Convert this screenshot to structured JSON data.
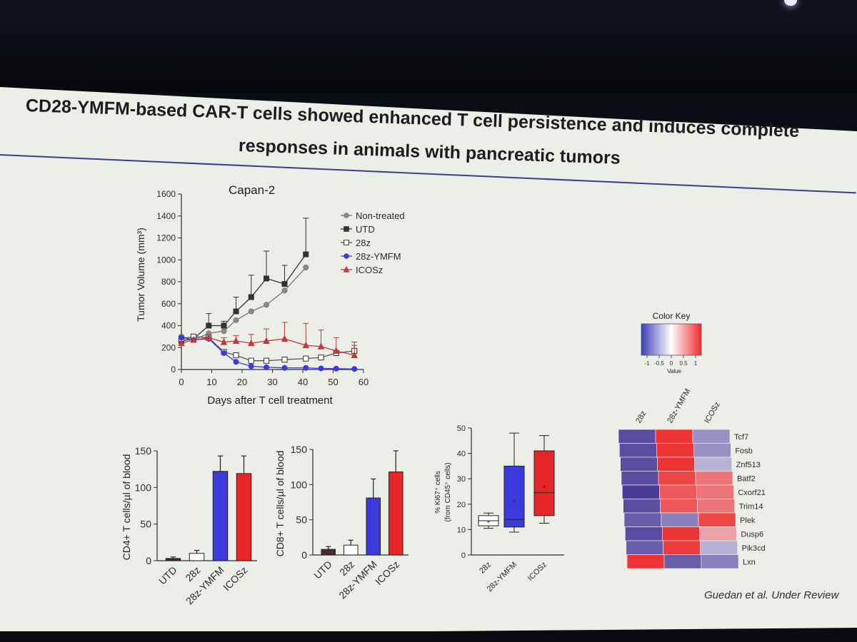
{
  "slide": {
    "title_line1": "CD28-YMFM-based CAR-T cells showed enhanced T cell persistence and induces complete",
    "title_line2": "responses in animals with pancreatic tumors",
    "citation": "Guedan et al. Under Review"
  },
  "colors": {
    "non_treated": "#8a8a8a",
    "utd": "#333333",
    "z28": "#ffffff",
    "ymfm": "#3b3bdd",
    "icosz": "#e8262a",
    "heat_low": "#4b3f9a",
    "heat_mid": "#ffffff",
    "heat_high": "#ee2a2a"
  },
  "chart_data": [
    {
      "id": "tumor",
      "type": "line",
      "title": "Capan-2",
      "xlabel": "Days after T cell treatment",
      "ylabel": "Tumor Volume (mm³)",
      "xlim": [
        0,
        60
      ],
      "ylim": [
        0,
        1600
      ],
      "xticks": [
        "0",
        "10",
        "20",
        "30",
        "40",
        "50",
        "60"
      ],
      "yticks": [
        "0",
        "200",
        "400",
        "600",
        "800",
        "1000",
        "1200",
        "1400",
        "1600"
      ],
      "legend_position": "top-right",
      "series": [
        {
          "name": "Non-treated",
          "marker": "circle-filled",
          "color": "#8a8a8a",
          "x": [
            0,
            4,
            9,
            14,
            18,
            23,
            28,
            34,
            41
          ],
          "y": [
            300,
            270,
            330,
            350,
            450,
            530,
            590,
            720,
            930
          ],
          "err": [
            0,
            0,
            0,
            0,
            0,
            0,
            0,
            0,
            0
          ]
        },
        {
          "name": "UTD",
          "marker": "square-filled",
          "color": "#333333",
          "x": [
            0,
            4,
            9,
            14,
            18,
            23,
            28,
            34,
            41
          ],
          "y": [
            260,
            280,
            400,
            400,
            530,
            660,
            830,
            780,
            1050
          ],
          "err": [
            0,
            40,
            110,
            40,
            130,
            200,
            250,
            170,
            330
          ]
        },
        {
          "name": "28z",
          "marker": "square-open",
          "color": "#ffffff",
          "x": [
            0,
            4,
            9,
            14,
            18,
            23,
            28,
            34,
            41,
            46,
            51,
            57
          ],
          "y": [
            280,
            300,
            290,
            160,
            130,
            80,
            80,
            90,
            100,
            110,
            150,
            170
          ],
          "err": [
            0,
            0,
            0,
            0,
            0,
            0,
            0,
            0,
            0,
            0,
            0,
            80
          ]
        },
        {
          "name": "28z-YMFM",
          "marker": "circle-filled",
          "color": "#3b3bdd",
          "x": [
            0,
            4,
            9,
            14,
            18,
            23,
            28,
            34,
            41,
            46,
            51,
            57
          ],
          "y": [
            290,
            270,
            280,
            150,
            70,
            30,
            20,
            15,
            15,
            10,
            8,
            5
          ],
          "err": [
            0,
            0,
            0,
            0,
            0,
            0,
            0,
            0,
            0,
            0,
            0,
            0
          ]
        },
        {
          "name": "ICOSz",
          "marker": "triangle-filled",
          "color": "#c0393f",
          "x": [
            0,
            4,
            9,
            14,
            18,
            23,
            28,
            34,
            41,
            46,
            51,
            57
          ],
          "y": [
            240,
            270,
            290,
            250,
            260,
            240,
            260,
            280,
            220,
            210,
            170,
            130
          ],
          "err": [
            0,
            0,
            0,
            40,
            50,
            80,
            110,
            150,
            200,
            150,
            120,
            90
          ]
        }
      ]
    },
    {
      "id": "cd4",
      "type": "bar",
      "title": "",
      "xlabel": "",
      "ylabel": "CD4+ T cells/µl of blood",
      "ylim": [
        0,
        150
      ],
      "yticks": [
        "0",
        "50",
        "100",
        "150"
      ],
      "categories": [
        "UTD",
        "28z",
        "28z-YMFM",
        "ICOSz"
      ],
      "values": [
        3,
        10,
        122,
        119
      ],
      "errors": [
        2,
        4,
        21,
        24
      ],
      "colors": [
        "#4a2a2a",
        "#ffffff",
        "#3b3bdd",
        "#e8262a"
      ]
    },
    {
      "id": "cd8",
      "type": "bar",
      "title": "",
      "xlabel": "",
      "ylabel": "CD8+ T cells/µl of blood",
      "ylim": [
        0,
        150
      ],
      "yticks": [
        "0",
        "50",
        "100",
        "150"
      ],
      "categories": [
        "UTD",
        "28z",
        "28z-YMFM",
        "ICOSz"
      ],
      "values": [
        8,
        14,
        81,
        118
      ],
      "errors": [
        4,
        7,
        27,
        30
      ],
      "colors": [
        "#4a2a2a",
        "#ffffff",
        "#3b3bdd",
        "#e8262a"
      ]
    },
    {
      "id": "ki67",
      "type": "box",
      "title": "",
      "xlabel": "",
      "ylabel_line1": "% Ki67⁺ cells",
      "ylabel_line2": "(from CD45⁺ cells)",
      "ylim": [
        0,
        50
      ],
      "yticks": [
        "0",
        "10",
        "20",
        "30",
        "40",
        "50"
      ],
      "categories": [
        "28z",
        "28z-YMFM",
        "ICOSz"
      ],
      "boxes": [
        {
          "min": 10.5,
          "q1": 11.5,
          "median": 13.5,
          "q3": 15.5,
          "max": 16.5,
          "mean": 13.0
        },
        {
          "min": 9,
          "q1": 11,
          "median": 14,
          "q3": 35,
          "max": 48,
          "mean": 21
        },
        {
          "min": 12.5,
          "q1": 15.5,
          "median": 24.5,
          "q3": 41,
          "max": 47,
          "mean": 27
        }
      ],
      "colors": [
        "#ffffff",
        "#3b3bdd",
        "#e8262a"
      ]
    },
    {
      "id": "heatmap",
      "type": "heatmap",
      "title": "Color Key",
      "key_ticks": [
        "-1",
        "-0.5",
        "0",
        "0.5",
        "1"
      ],
      "key_label": "Value",
      "columns": [
        "28z",
        "28z-YMFM",
        "ICOSz"
      ],
      "rows": [
        "Tcf7",
        "Fosb",
        "Znf513",
        "Batf2",
        "Cxorf21",
        "Trim14",
        "Plek",
        "Dusp6",
        "Pik3cd",
        "Lxn"
      ],
      "values": [
        [
          -0.9,
          0.95,
          -0.5
        ],
        [
          -0.9,
          0.95,
          -0.5
        ],
        [
          -0.9,
          0.95,
          -0.3
        ],
        [
          -0.9,
          0.85,
          0.6
        ],
        [
          -1.0,
          0.75,
          0.6
        ],
        [
          -0.9,
          0.75,
          0.6
        ],
        [
          -0.8,
          -0.6,
          0.85
        ],
        [
          -0.9,
          0.95,
          0.35
        ],
        [
          -0.8,
          0.9,
          -0.3
        ],
        [
          0.95,
          -0.8,
          -0.6
        ]
      ]
    }
  ]
}
